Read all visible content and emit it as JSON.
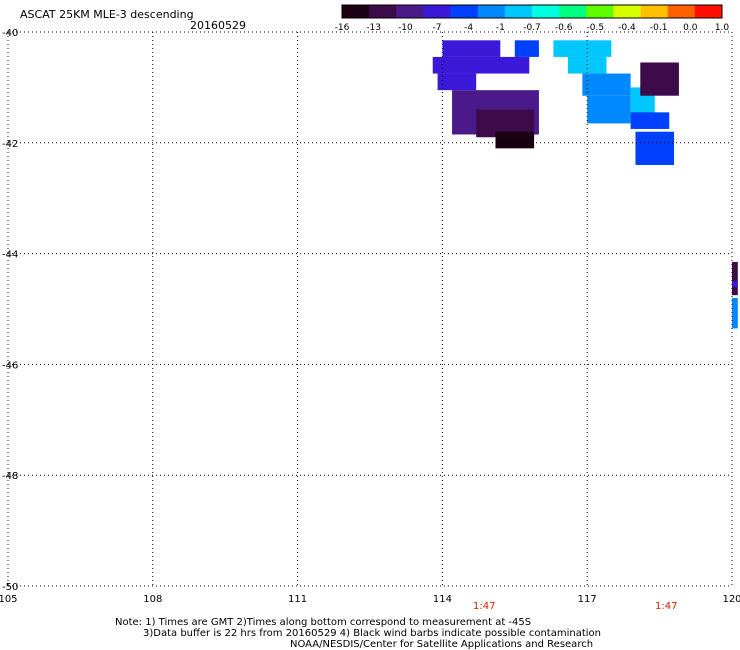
{
  "header": {
    "title": "ASCAT 25KM MLE-3 descending",
    "date": "20160529"
  },
  "colorbar": {
    "labels": [
      "-16",
      "-13",
      "-10",
      "-7",
      "-4",
      "-1",
      "-0.7",
      "-0.6",
      "-0.5",
      "-0.4",
      "-0.1",
      "0.0",
      "1.0"
    ],
    "colors": [
      "#1a0010",
      "#3d0a4a",
      "#4a1a8a",
      "#3a1ad8",
      "#0040ff",
      "#0088ff",
      "#00c8ff",
      "#00ffe0",
      "#00ff80",
      "#60ff00",
      "#d8ff00",
      "#ffc000",
      "#ff6000",
      "#ff1000"
    ]
  },
  "map": {
    "lon_range": [
      105,
      120
    ],
    "lat_range": [
      -50,
      -40
    ],
    "x_ticks": [
      "105",
      "108",
      "111",
      "114",
      "117",
      "120"
    ],
    "y_ticks": [
      "-40",
      "-42",
      "-44",
      "-46",
      "-48",
      "-50"
    ],
    "grid": "dotted",
    "cells": [
      {
        "lon": 114.0,
        "lat": -40.15,
        "w": 1.2,
        "h": 0.3,
        "v": -7
      },
      {
        "lon": 115.5,
        "lat": -40.15,
        "w": 0.5,
        "h": 0.3,
        "v": -4
      },
      {
        "lon": 113.8,
        "lat": -40.45,
        "w": 2.0,
        "h": 0.3,
        "v": -7
      },
      {
        "lon": 113.9,
        "lat": -40.75,
        "w": 0.8,
        "h": 0.3,
        "v": -7
      },
      {
        "lon": 114.2,
        "lat": -41.05,
        "w": 1.8,
        "h": 0.8,
        "v": -10
      },
      {
        "lon": 114.7,
        "lat": -41.4,
        "w": 1.2,
        "h": 0.5,
        "v": -13
      },
      {
        "lon": 115.1,
        "lat": -41.8,
        "w": 0.8,
        "h": 0.3,
        "v": -16
      },
      {
        "lon": 116.3,
        "lat": -40.15,
        "w": 1.2,
        "h": 0.3,
        "v": -0.7
      },
      {
        "lon": 116.6,
        "lat": -40.45,
        "w": 0.8,
        "h": 0.3,
        "v": -0.7
      },
      {
        "lon": 116.9,
        "lat": -40.75,
        "w": 1.0,
        "h": 0.4,
        "v": -1
      },
      {
        "lon": 117.0,
        "lat": -41.15,
        "w": 0.9,
        "h": 0.5,
        "v": -1
      },
      {
        "lon": 117.9,
        "lat": -41.0,
        "w": 0.5,
        "h": 0.5,
        "v": -0.7
      },
      {
        "lon": 118.1,
        "lat": -40.55,
        "w": 0.8,
        "h": 0.6,
        "v": -13
      },
      {
        "lon": 117.9,
        "lat": -41.45,
        "w": 0.8,
        "h": 0.3,
        "v": -4
      },
      {
        "lon": 118.0,
        "lat": -41.8,
        "w": 0.8,
        "h": 0.6,
        "v": -4
      },
      {
        "lon": 120.0,
        "lat": -44.15,
        "w": 0.12,
        "h": 0.6,
        "v": -13
      },
      {
        "lon": 120.0,
        "lat": -44.5,
        "w": 0.12,
        "h": 0.1,
        "v": -7
      },
      {
        "lon": 120.0,
        "lat": -44.8,
        "w": 0.12,
        "h": 0.55,
        "v": -1
      }
    ]
  },
  "times": [
    {
      "label": "1:47",
      "lon": 114.8
    },
    {
      "label": "1:47",
      "lon": 118.5
    }
  ],
  "notes": [
    "Note: 1) Times are GMT 2)Times along bottom correspond to measurement at -45S",
    "3)Data buffer is 22 hrs from 20160529 4) Black wind barbs indicate possible contamination",
    "NOAA/NESDIS/Center for Satellite Applications and Research"
  ]
}
